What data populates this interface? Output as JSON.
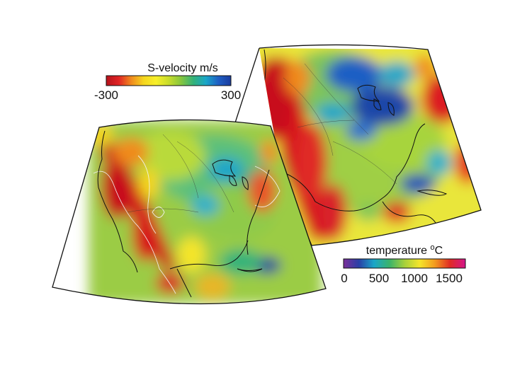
{
  "colors": {
    "ramp": [
      "#b5121b",
      "#e02424",
      "#f08a1e",
      "#f5d61e",
      "#f7ef2a",
      "#c8dc2b",
      "#86c63e",
      "#33b27a",
      "#1aa6c8",
      "#1f5fc4",
      "#1a3c9e"
    ],
    "temp_ramp": [
      "#7b2f9a",
      "#2a3fa6",
      "#1aa6c8",
      "#39b36c",
      "#a6d03a",
      "#f5e52a",
      "#f39a1e",
      "#e02a26",
      "#d4148a"
    ],
    "ocean": "#ffffff",
    "land_outline": "#111111",
    "contour": "#f2f2f2",
    "frame": "#111111"
  },
  "legends": {
    "velocity": {
      "title": "S-velocity m/s",
      "min_label": "-300",
      "max_label": "300"
    },
    "temperature": {
      "title_main": "temperature ",
      "title_sup": "o",
      "title_unit": "C",
      "ticks": [
        "0",
        "500",
        "1000",
        "1500"
      ]
    }
  },
  "maps": {
    "velocity_map": {
      "label": "S-velocity map"
    },
    "temperature_map": {
      "label": "temperature map"
    }
  }
}
